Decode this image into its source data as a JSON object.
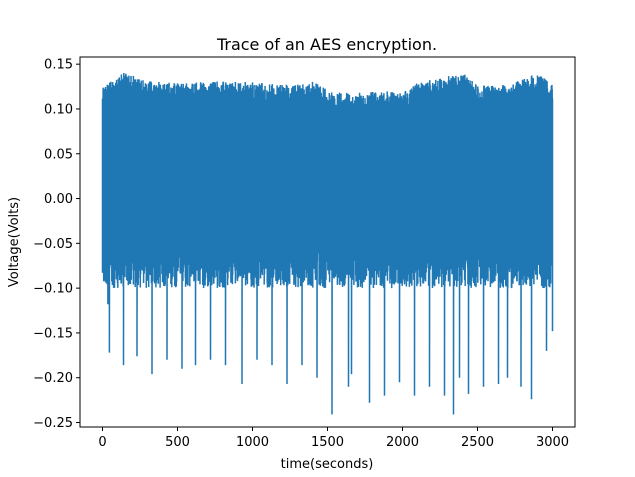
{
  "chart_data": {
    "type": "line",
    "title": "Trace of an AES encryption.",
    "xlabel": "time(seconds)",
    "ylabel": "Voltage(Volts)",
    "xlim": [
      -150,
      3150
    ],
    "ylim": [
      -0.255,
      0.158
    ],
    "xticks": [
      0,
      500,
      1000,
      1500,
      2000,
      2500,
      3000
    ],
    "yticks": [
      0.15,
      0.1,
      0.05,
      0.0,
      -0.05,
      -0.1,
      -0.15,
      -0.2,
      -0.25
    ],
    "xtick_labels": [
      "0",
      "500",
      "1000",
      "1500",
      "2000",
      "2500",
      "3000"
    ],
    "ytick_labels": [
      "0.15",
      "0.10",
      "0.05",
      "0.00",
      "−0.05",
      "−0.10",
      "−0.15",
      "−0.20",
      "−0.25"
    ],
    "grid": false,
    "legend": "none",
    "series": [
      {
        "color": "#1f77b4",
        "x_start": 0,
        "x_end": 3000,
        "envelope_top": [
          [
            0,
            0.128
          ],
          [
            50,
            0.13
          ],
          [
            140,
            0.141
          ],
          [
            300,
            0.131
          ],
          [
            550,
            0.129
          ],
          [
            800,
            0.131
          ],
          [
            1000,
            0.13
          ],
          [
            1200,
            0.127
          ],
          [
            1400,
            0.131
          ],
          [
            1550,
            0.12
          ],
          [
            1700,
            0.118
          ],
          [
            1900,
            0.12
          ],
          [
            2000,
            0.118
          ],
          [
            2100,
            0.129
          ],
          [
            2400,
            0.141
          ],
          [
            2500,
            0.126
          ],
          [
            2700,
            0.127
          ],
          [
            2900,
            0.14
          ],
          [
            3000,
            0.128
          ]
        ],
        "envelope_bottom_typical": -0.08,
        "negative_spikes": [
          [
            0,
            -0.083
          ],
          [
            35,
            -0.118
          ],
          [
            45,
            -0.172
          ],
          [
            140,
            -0.186
          ],
          [
            230,
            -0.176
          ],
          [
            330,
            -0.196
          ],
          [
            430,
            -0.18
          ],
          [
            530,
            -0.19
          ],
          [
            620,
            -0.186
          ],
          [
            720,
            -0.18
          ],
          [
            820,
            -0.186
          ],
          [
            930,
            -0.207
          ],
          [
            1030,
            -0.18
          ],
          [
            1130,
            -0.186
          ],
          [
            1230,
            -0.207
          ],
          [
            1330,
            -0.186
          ],
          [
            1430,
            -0.2
          ],
          [
            1530,
            -0.241
          ],
          [
            1640,
            -0.21
          ],
          [
            1660,
            -0.196
          ],
          [
            1780,
            -0.228
          ],
          [
            1880,
            -0.22
          ],
          [
            1980,
            -0.205
          ],
          [
            2080,
            -0.22
          ],
          [
            2180,
            -0.21
          ],
          [
            2280,
            -0.22
          ],
          [
            2340,
            -0.241
          ],
          [
            2380,
            -0.2
          ],
          [
            2440,
            -0.218
          ],
          [
            2540,
            -0.21
          ],
          [
            2640,
            -0.207
          ],
          [
            2700,
            -0.2
          ],
          [
            2790,
            -0.21
          ],
          [
            2860,
            -0.224
          ],
          [
            2960,
            -0.17
          ],
          [
            3000,
            -0.148
          ]
        ]
      }
    ]
  }
}
